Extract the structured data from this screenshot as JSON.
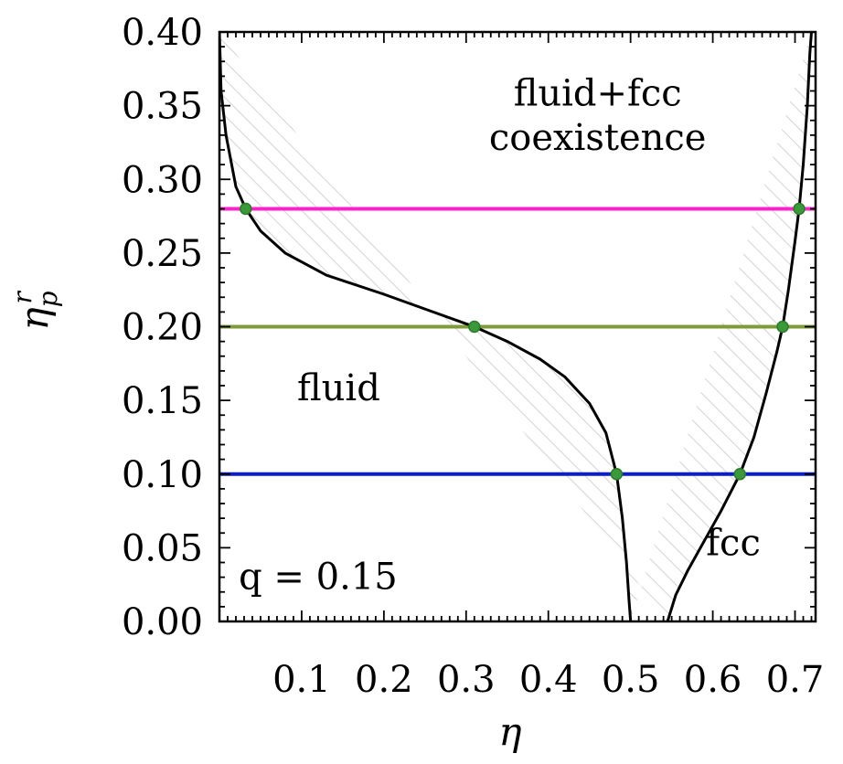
{
  "chart_data": {
    "type": "line",
    "xlabel": "η",
    "ylabel": "η",
    "ylabel_sub": "p",
    "ylabel_sup": "r",
    "xlim": [
      0.0,
      0.725
    ],
    "ylim": [
      0.0,
      0.4
    ],
    "x_ticks": [
      0.1,
      0.2,
      0.3,
      0.4,
      0.5,
      0.6,
      0.7
    ],
    "x_tick_labels": [
      "0.1",
      "0.2",
      "0.3",
      "0.4",
      "0.5",
      "0.6",
      "0.7"
    ],
    "y_ticks": [
      0.0,
      0.05,
      0.1,
      0.15,
      0.2,
      0.25,
      0.3,
      0.35,
      0.4
    ],
    "y_tick_labels": [
      "0.00",
      "0.05",
      "0.10",
      "0.15",
      "0.20",
      "0.25",
      "0.30",
      "0.35",
      "0.40"
    ],
    "grid": false,
    "series": [
      {
        "color": "#000000",
        "points": [
          [
            0.0,
            0.4
          ],
          [
            0.002,
            0.36
          ],
          [
            0.008,
            0.33
          ],
          [
            0.02,
            0.295
          ],
          [
            0.032,
            0.28
          ],
          [
            0.05,
            0.265
          ],
          [
            0.08,
            0.25
          ],
          [
            0.13,
            0.235
          ],
          [
            0.2,
            0.222
          ],
          [
            0.26,
            0.21
          ],
          [
            0.31,
            0.2
          ],
          [
            0.35,
            0.19
          ],
          [
            0.39,
            0.178
          ],
          [
            0.42,
            0.166
          ],
          [
            0.45,
            0.148
          ],
          [
            0.47,
            0.128
          ],
          [
            0.483,
            0.1
          ],
          [
            0.49,
            0.07
          ],
          [
            0.495,
            0.04
          ],
          [
            0.498,
            0.015
          ],
          [
            0.5,
            0.0
          ]
        ]
      },
      {
        "color": "#000000",
        "points": [
          [
            0.545,
            0.0
          ],
          [
            0.555,
            0.018
          ],
          [
            0.57,
            0.035
          ],
          [
            0.59,
            0.055
          ],
          [
            0.61,
            0.075
          ],
          [
            0.633,
            0.1
          ],
          [
            0.65,
            0.125
          ],
          [
            0.665,
            0.155
          ],
          [
            0.678,
            0.183
          ],
          [
            0.685,
            0.2
          ],
          [
            0.692,
            0.225
          ],
          [
            0.7,
            0.258
          ],
          [
            0.705,
            0.28
          ],
          [
            0.71,
            0.31
          ],
          [
            0.715,
            0.35
          ],
          [
            0.718,
            0.385
          ],
          [
            0.72,
            0.4
          ]
        ]
      }
    ],
    "horizontal_lines": [
      {
        "y": 0.28,
        "color": "#ff22cc",
        "points_x": [
          0.032,
          0.705
        ]
      },
      {
        "y": 0.2,
        "color": "#7f9a3a",
        "points_x": [
          0.31,
          0.685
        ]
      },
      {
        "y": 0.1,
        "color": "#0a1ecc",
        "points_x": [
          0.483,
          0.633
        ]
      }
    ],
    "marker_color": "#3a9a3a",
    "hatch_color": "#c8c8c8",
    "annotations": [
      {
        "text": "fluid+fcc",
        "x": 0.46,
        "y": 0.35
      },
      {
        "text": "coexistence",
        "x": 0.46,
        "y": 0.32
      },
      {
        "text": "fluid",
        "x": 0.145,
        "y": 0.15
      },
      {
        "text": "fcc",
        "x": 0.625,
        "y": 0.045
      },
      {
        "text": "q = 0.15",
        "x": 0.12,
        "y": 0.022
      }
    ]
  }
}
